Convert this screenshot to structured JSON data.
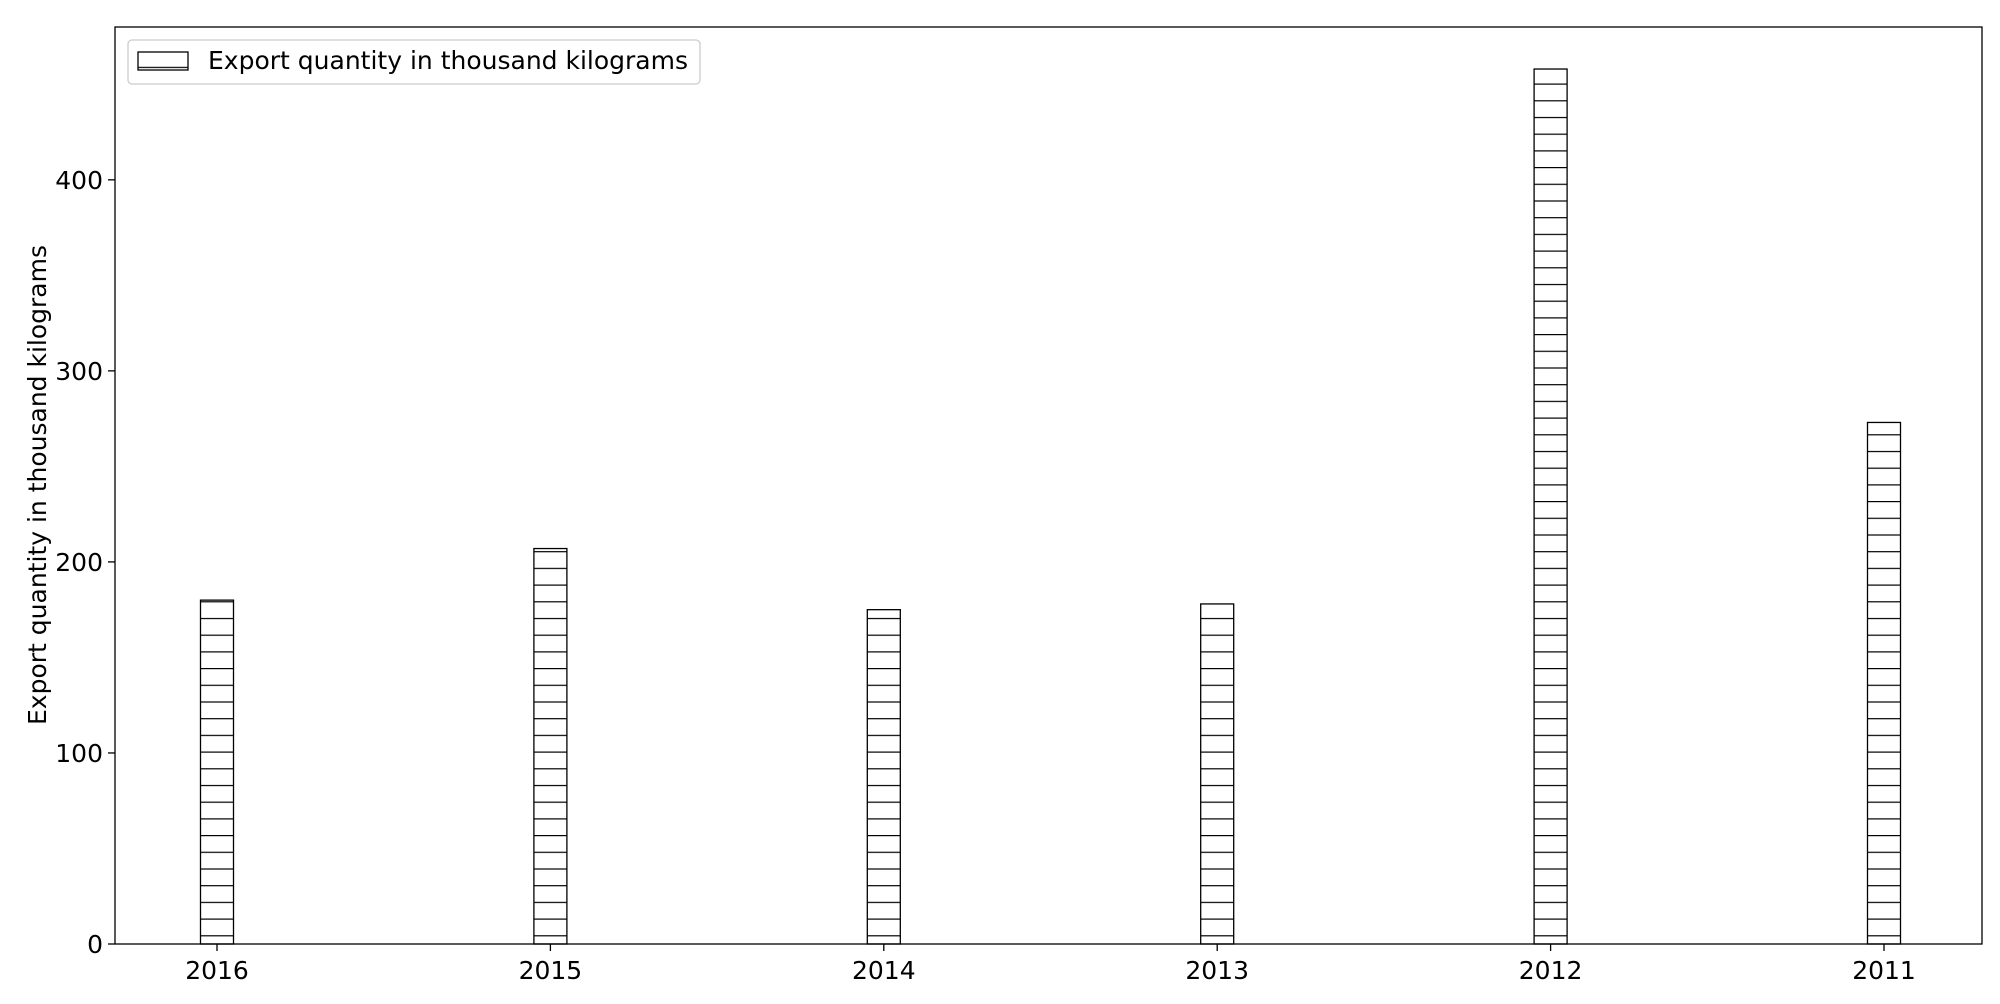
{
  "chart_data": {
    "type": "bar",
    "categories": [
      "2016",
      "2015",
      "2014",
      "2013",
      "2012",
      "2011"
    ],
    "series": [
      {
        "name": "Export quantity in thousand kilograms",
        "values": [
          180,
          207,
          175,
          178,
          458,
          273
        ]
      }
    ],
    "xlabel": "",
    "ylabel": "Export quantity in thousand kilograms",
    "ylim": [
      0,
      480
    ],
    "yticks": [
      0,
      100,
      200,
      300,
      400
    ],
    "grid": false,
    "legend": "top-left",
    "hatch": "horizontal",
    "colors": {
      "bar_fill": "#ffffff",
      "bar_edge": "#000000",
      "axis": "#000000"
    }
  }
}
